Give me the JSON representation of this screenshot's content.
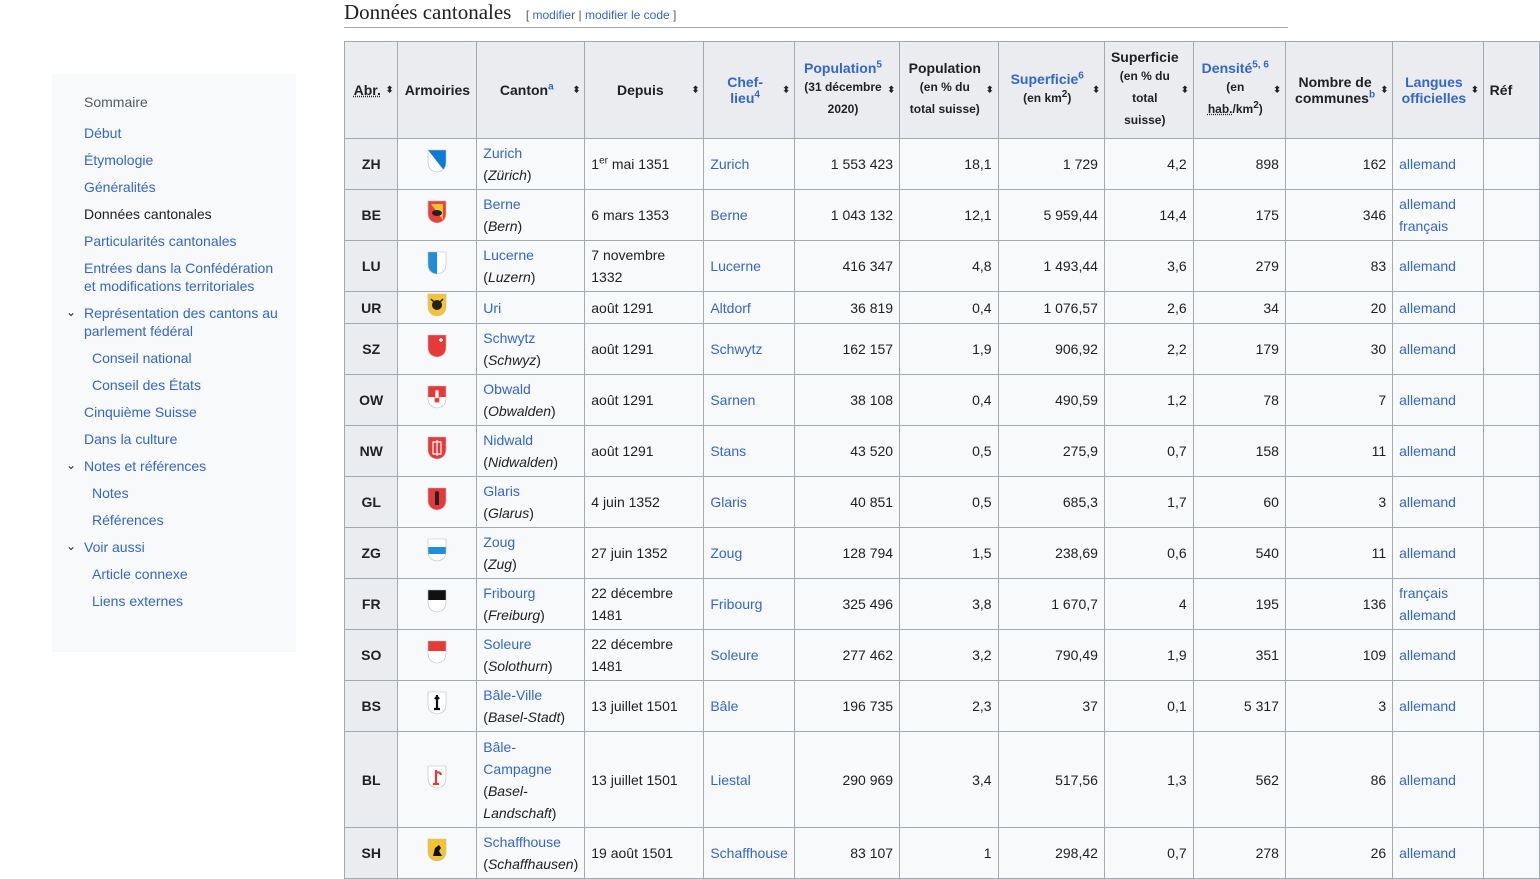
{
  "toc": {
    "title": "Sommaire",
    "items": [
      {
        "label": "Début",
        "level": 1,
        "link": true
      },
      {
        "label": "Étymologie",
        "level": 1,
        "link": true
      },
      {
        "label": "Généralités",
        "level": 1,
        "link": true
      },
      {
        "label": "Données cantonales",
        "level": 1,
        "link": false
      },
      {
        "label": "Particularités cantonales",
        "level": 1,
        "link": true
      },
      {
        "label": "Entrées dans la Confédération et modifications territoriales",
        "level": 1,
        "link": true
      },
      {
        "label": "Représentation des cantons au parlement fédéral",
        "level": 1,
        "link": true,
        "expanded": true
      },
      {
        "label": "Conseil national",
        "level": 2,
        "link": true
      },
      {
        "label": "Conseil des États",
        "level": 2,
        "link": true
      },
      {
        "label": "Cinquième Suisse",
        "level": 1,
        "link": true
      },
      {
        "label": "Dans la culture",
        "level": 1,
        "link": true
      },
      {
        "label": "Notes et références",
        "level": 1,
        "link": true,
        "expanded": true
      },
      {
        "label": "Notes",
        "level": 2,
        "link": true
      },
      {
        "label": "Références",
        "level": 2,
        "link": true
      },
      {
        "label": "Voir aussi",
        "level": 1,
        "link": true,
        "expanded": true
      },
      {
        "label": "Article connexe",
        "level": 2,
        "link": true
      },
      {
        "label": "Liens externes",
        "level": 2,
        "link": true
      }
    ]
  },
  "heading": {
    "title": "Données cantonales",
    "edit_open": "[ ",
    "edit_label": "modifier",
    "edit_sep": " | ",
    "edit_code_label": "modifier le code",
    "edit_close": " ]"
  },
  "table": {
    "headers": {
      "abr": "Abr.",
      "armoiries": "Armoiries",
      "canton": "Canton",
      "canton_sup": "a",
      "depuis": "Depuis",
      "chef1": "Chef-",
      "chef2": "lieu",
      "chef_sup": "4",
      "pop": "Population",
      "pop_sup": "5",
      "pop_sub": "(31 décembre 2020)",
      "poppct": "Population",
      "poppct_sub": "(en % du total suisse)",
      "sup": "Superficie",
      "sup_sup": "6",
      "sup_sub_a": "(en km",
      "sup_sub_exp": "2",
      "sup_sub_b": ")",
      "suppct": "Superficie",
      "suppct_sub": "(en % du total suisse)",
      "dens": "Densité",
      "dens_sup": "5, 6",
      "dens_sub_a": "(en ",
      "dens_sub_hab": "hab.",
      "dens_sub_b": "/km",
      "dens_sub_exp": "2",
      "dens_sub_c": ")",
      "communes": "Nombre de communes",
      "communes_sup": "b",
      "langues": "Langues officielles",
      "ref": "Réf"
    },
    "rows": [
      {
        "abr": "ZH",
        "canton": "Zurich",
        "local": "Zürich",
        "depuis_pre": "1",
        "depuis_sup": "er",
        "depuis": " mai 1351",
        "chef": "Zurich",
        "pop": "1 553 423",
        "poppct": "18,1",
        "sup": "1 729",
        "suppct": "4,2",
        "dens": "898",
        "communes": "162",
        "langues": [
          "allemand"
        ],
        "coat": "zh"
      },
      {
        "abr": "BE",
        "canton": "Berne",
        "local": "Bern",
        "depuis": "6 mars 1353",
        "chef": "Berne",
        "pop": "1 043 132",
        "poppct": "12,1",
        "sup": "5 959,44",
        "suppct": "14,4",
        "dens": "175",
        "communes": "346",
        "langues": [
          "allemand",
          "français"
        ],
        "coat": "be"
      },
      {
        "abr": "LU",
        "canton": "Lucerne",
        "local": "Luzern",
        "depuis": "7 novembre 1332",
        "chef": "Lucerne",
        "pop": "416 347",
        "poppct": "4,8",
        "sup": "1 493,44",
        "suppct": "3,6",
        "dens": "279",
        "communes": "83",
        "langues": [
          "allemand"
        ],
        "coat": "lu"
      },
      {
        "abr": "UR",
        "canton": "Uri",
        "local": "",
        "depuis": "août 1291",
        "chef": "Altdorf",
        "pop": "36 819",
        "poppct": "0,4",
        "sup": "1 076,57",
        "suppct": "2,6",
        "dens": "34",
        "communes": "20",
        "langues": [
          "allemand"
        ],
        "coat": "ur"
      },
      {
        "abr": "SZ",
        "canton": "Schwytz",
        "local": "Schwyz",
        "depuis": "août 1291",
        "chef": "Schwytz",
        "pop": "162 157",
        "poppct": "1,9",
        "sup": "906,92",
        "suppct": "2,2",
        "dens": "179",
        "communes": "30",
        "langues": [
          "allemand"
        ],
        "coat": "sz"
      },
      {
        "abr": "OW",
        "canton": "Obwald",
        "local": "Obwalden",
        "depuis": "août 1291",
        "chef": "Sarnen",
        "pop": "38 108",
        "poppct": "0,4",
        "sup": "490,59",
        "suppct": "1,2",
        "dens": "78",
        "communes": "7",
        "langues": [
          "allemand"
        ],
        "coat": "ow"
      },
      {
        "abr": "NW",
        "canton": "Nidwald",
        "local": "Nidwalden",
        "depuis": "août 1291",
        "chef": "Stans",
        "pop": "43 520",
        "poppct": "0,5",
        "sup": "275,9",
        "suppct": "0,7",
        "dens": "158",
        "communes": "11",
        "langues": [
          "allemand"
        ],
        "coat": "nw"
      },
      {
        "abr": "GL",
        "canton": "Glaris",
        "local": "Glarus",
        "depuis": "4 juin 1352",
        "chef": "Glaris",
        "pop": "40 851",
        "poppct": "0,5",
        "sup": "685,3",
        "suppct": "1,7",
        "dens": "60",
        "communes": "3",
        "langues": [
          "allemand"
        ],
        "coat": "gl"
      },
      {
        "abr": "ZG",
        "canton": "Zoug",
        "local": "Zug",
        "depuis": "27 juin 1352",
        "chef": "Zoug",
        "pop": "128 794",
        "poppct": "1,5",
        "sup": "238,69",
        "suppct": "0,6",
        "dens": "540",
        "communes": "11",
        "langues": [
          "allemand"
        ],
        "coat": "zg"
      },
      {
        "abr": "FR",
        "canton": "Fribourg",
        "local": "Freiburg",
        "depuis": "22 décembre 1481",
        "chef": "Fribourg",
        "pop": "325 496",
        "poppct": "3,8",
        "sup": "1 670,7",
        "suppct": "4",
        "dens": "195",
        "communes": "136",
        "langues": [
          "français",
          "allemand"
        ],
        "coat": "fr"
      },
      {
        "abr": "SO",
        "canton": "Soleure",
        "local": "Solothurn",
        "depuis": "22 décembre 1481",
        "chef": "Soleure",
        "pop": "277 462",
        "poppct": "3,2",
        "sup": "790,49",
        "suppct": "1,9",
        "dens": "351",
        "communes": "109",
        "langues": [
          "allemand"
        ],
        "coat": "so"
      },
      {
        "abr": "BS",
        "canton": "Bâle-Ville",
        "local": "Basel-Stadt",
        "depuis": "13 juillet 1501",
        "chef": "Bâle",
        "pop": "196 735",
        "poppct": "2,3",
        "sup": "37",
        "suppct": "0,1",
        "dens": "5 317",
        "communes": "3",
        "langues": [
          "allemand"
        ],
        "coat": "bs"
      },
      {
        "abr": "BL",
        "canton": "Bâle-Campagne",
        "local": "Basel-Landschaft",
        "depuis": "13 juillet 1501",
        "chef": "Liestal",
        "pop": "290 969",
        "poppct": "3,4",
        "sup": "517,56",
        "suppct": "1,3",
        "dens": "562",
        "communes": "86",
        "langues": [
          "allemand"
        ],
        "coat": "bl"
      },
      {
        "abr": "SH",
        "canton": "Schaffhouse",
        "local": "Schaffhausen",
        "depuis": "19 août 1501",
        "chef": "Schaffhouse",
        "pop": "83 107",
        "poppct": "1",
        "sup": "298,42",
        "suppct": "0,7",
        "dens": "278",
        "communes": "26",
        "langues": [
          "allemand"
        ],
        "coat": "sh"
      }
    ]
  },
  "colors": {
    "link": "#3366cc",
    "header_bg": "#eaecf0",
    "cell_bg": "#f8f9fa",
    "border": "#a2a9b1"
  }
}
